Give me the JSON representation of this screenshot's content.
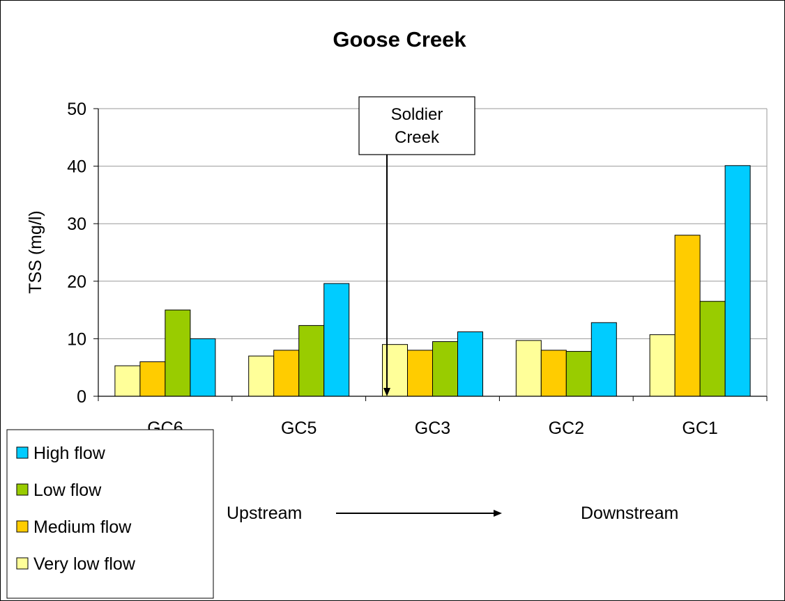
{
  "chart_data": {
    "type": "bar",
    "title": "Goose Creek",
    "xlabel": "",
    "ylabel": "TSS (mg/l)",
    "ylim": [
      0,
      50
    ],
    "yticks": [
      0,
      10,
      20,
      30,
      40,
      50
    ],
    "grid": true,
    "legend_position": "bottom-left",
    "categories": [
      "GC6",
      "GC5",
      "GC3",
      "GC2",
      "GC1"
    ],
    "series": [
      {
        "name": "Very low flow",
        "color": "#FFFF99",
        "values": [
          5.3,
          7.0,
          9.0,
          9.7,
          10.7
        ]
      },
      {
        "name": "Medium flow",
        "color": "#FFCC00",
        "values": [
          6.0,
          8.0,
          8.0,
          8.0,
          28.0
        ]
      },
      {
        "name": "Low flow",
        "color": "#99CC00",
        "values": [
          15.0,
          12.3,
          9.5,
          7.8,
          16.5
        ]
      },
      {
        "name": "High flow",
        "color": "#00CCFF",
        "values": [
          10.0,
          19.6,
          11.2,
          12.8,
          40.1
        ]
      }
    ],
    "legend_order": [
      "High flow",
      "Low flow",
      "Medium flow",
      "Very low flow"
    ],
    "annotations": {
      "callout_line1": "Soldier",
      "callout_line2": "Creek",
      "upstream": "Upstream",
      "downstream": "Downstream"
    }
  }
}
